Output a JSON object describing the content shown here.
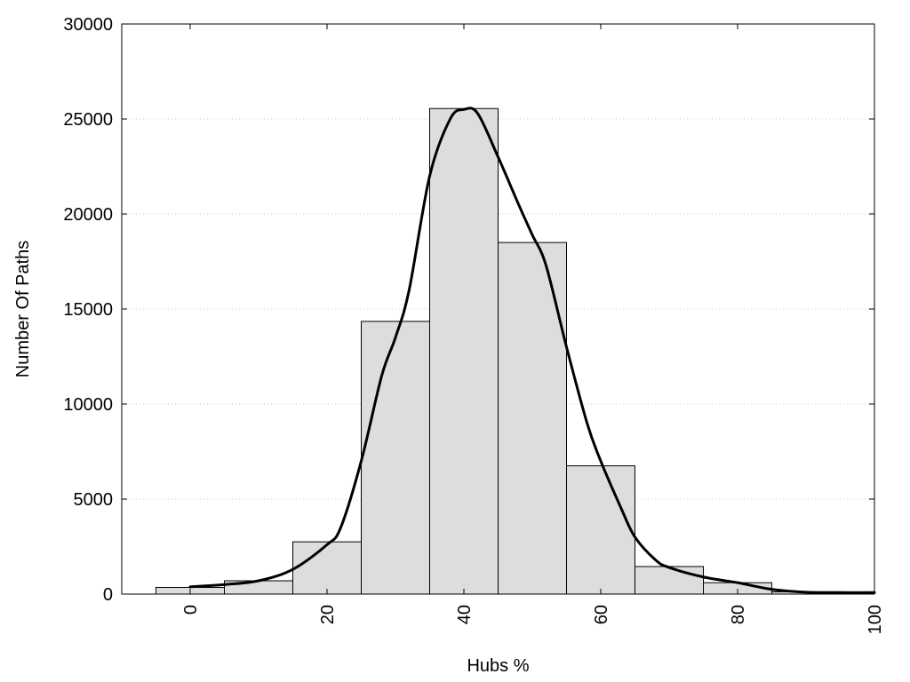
{
  "chart_data": {
    "type": "bar",
    "title": "",
    "xlabel": "Hubs %",
    "ylabel": "Number Of Paths",
    "xlim": [
      -10,
      100
    ],
    "ylim": [
      0,
      30000
    ],
    "x_ticks": [
      0,
      20,
      40,
      60,
      80,
      100
    ],
    "y_ticks": [
      0,
      5000,
      10000,
      15000,
      20000,
      25000,
      30000
    ],
    "grid": "horizontal-dotted",
    "bin_width": 10,
    "bins": [
      {
        "center": 0,
        "value": 350
      },
      {
        "center": 10,
        "value": 700
      },
      {
        "center": 20,
        "value": 2750
      },
      {
        "center": 30,
        "value": 14350
      },
      {
        "center": 40,
        "value": 25550
      },
      {
        "center": 50,
        "value": 18500
      },
      {
        "center": 60,
        "value": 6750
      },
      {
        "center": 70,
        "value": 1450
      },
      {
        "center": 80,
        "value": 600
      },
      {
        "center": 90,
        "value": 120
      },
      {
        "center": 100,
        "value": 60
      }
    ],
    "density_curve": [
      [
        0,
        380
      ],
      [
        5,
        500
      ],
      [
        10,
        700
      ],
      [
        15,
        1300
      ],
      [
        20,
        2600
      ],
      [
        22,
        3500
      ],
      [
        25,
        7000
      ],
      [
        28,
        11500
      ],
      [
        30,
        13500
      ],
      [
        32,
        16000
      ],
      [
        35,
        22000
      ],
      [
        38,
        25000
      ],
      [
        40,
        25500
      ],
      [
        42,
        25300
      ],
      [
        45,
        23000
      ],
      [
        48,
        20500
      ],
      [
        50,
        18900
      ],
      [
        52,
        17300
      ],
      [
        55,
        13000
      ],
      [
        58,
        9000
      ],
      [
        60,
        7000
      ],
      [
        63,
        4500
      ],
      [
        65,
        3000
      ],
      [
        68,
        1800
      ],
      [
        70,
        1400
      ],
      [
        75,
        900
      ],
      [
        80,
        600
      ],
      [
        85,
        250
      ],
      [
        90,
        100
      ],
      [
        95,
        80
      ],
      [
        100,
        80
      ]
    ],
    "colors": {
      "bar_fill": "#dddddd",
      "bar_stroke": "#000000",
      "curve": "#000000",
      "grid": "#cccccc"
    }
  }
}
